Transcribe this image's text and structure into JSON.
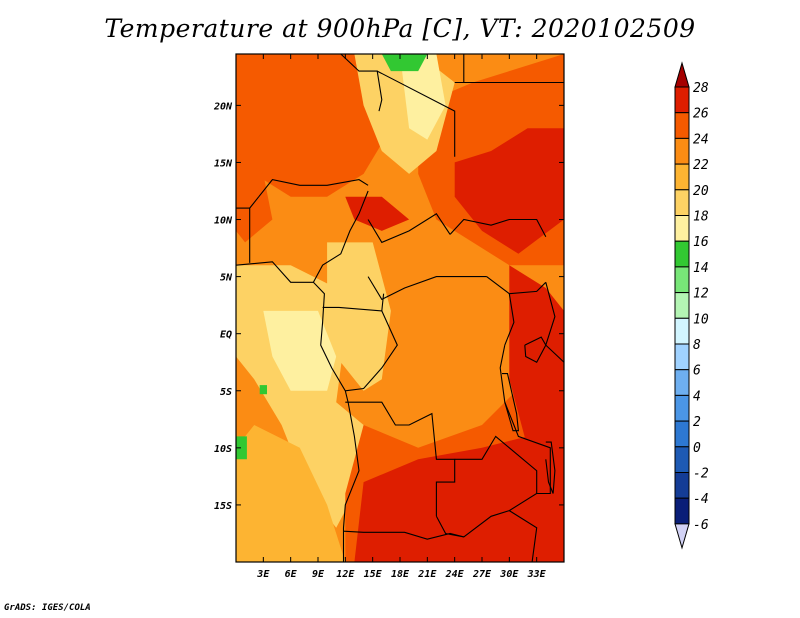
{
  "title": "Temperature at 900hPa [C], VT: 2020102509",
  "credit": "GrADS: IGES/COLA",
  "colors": {
    "c28plus": "#a50000",
    "c26": "#de1e00",
    "c24": "#f55a00",
    "c22": "#fb8c14",
    "c20": "#fdb432",
    "c18": "#fdd264",
    "c16": "#fef0a0",
    "c14": "#32c832",
    "c12": "#78e678",
    "c10": "#b4f5b4",
    "c8": "#d2f5ff",
    "c6": "#a0d2ff",
    "c4": "#6eaff0",
    "c2": "#4b96e6",
    "c0": "#2d78d2",
    "cm2": "#1e5ab4",
    "cm4": "#143c96",
    "cm6": "#0a1e78",
    "below": "#d2d2f5",
    "border": "#000000"
  },
  "map": {
    "lon_range": [
      0,
      36
    ],
    "lat_range": [
      -20,
      24.5
    ],
    "lon_ticks": [
      {
        "value": 3,
        "label": "3E"
      },
      {
        "value": 6,
        "label": "6E"
      },
      {
        "value": 9,
        "label": "9E"
      },
      {
        "value": 12,
        "label": "12E"
      },
      {
        "value": 15,
        "label": "15E"
      },
      {
        "value": 18,
        "label": "18E"
      },
      {
        "value": 21,
        "label": "21E"
      },
      {
        "value": 24,
        "label": "24E"
      },
      {
        "value": 27,
        "label": "27E"
      },
      {
        "value": 30,
        "label": "30E"
      },
      {
        "value": 33,
        "label": "33E"
      }
    ],
    "lat_ticks": [
      {
        "value": 20,
        "label": "20N"
      },
      {
        "value": 15,
        "label": "15N"
      },
      {
        "value": 10,
        "label": "10N"
      },
      {
        "value": 5,
        "label": "5N"
      },
      {
        "value": 0,
        "label": "EQ"
      },
      {
        "value": -5,
        "label": "5S"
      },
      {
        "value": -10,
        "label": "10S"
      },
      {
        "value": -15,
        "label": "15S"
      }
    ]
  },
  "colorbar": {
    "labels": [
      "28",
      "26",
      "24",
      "22",
      "20",
      "18",
      "16",
      "14",
      "12",
      "10",
      "8",
      "6",
      "4",
      "2",
      "0",
      "-2",
      "-4",
      "-6"
    ]
  }
}
